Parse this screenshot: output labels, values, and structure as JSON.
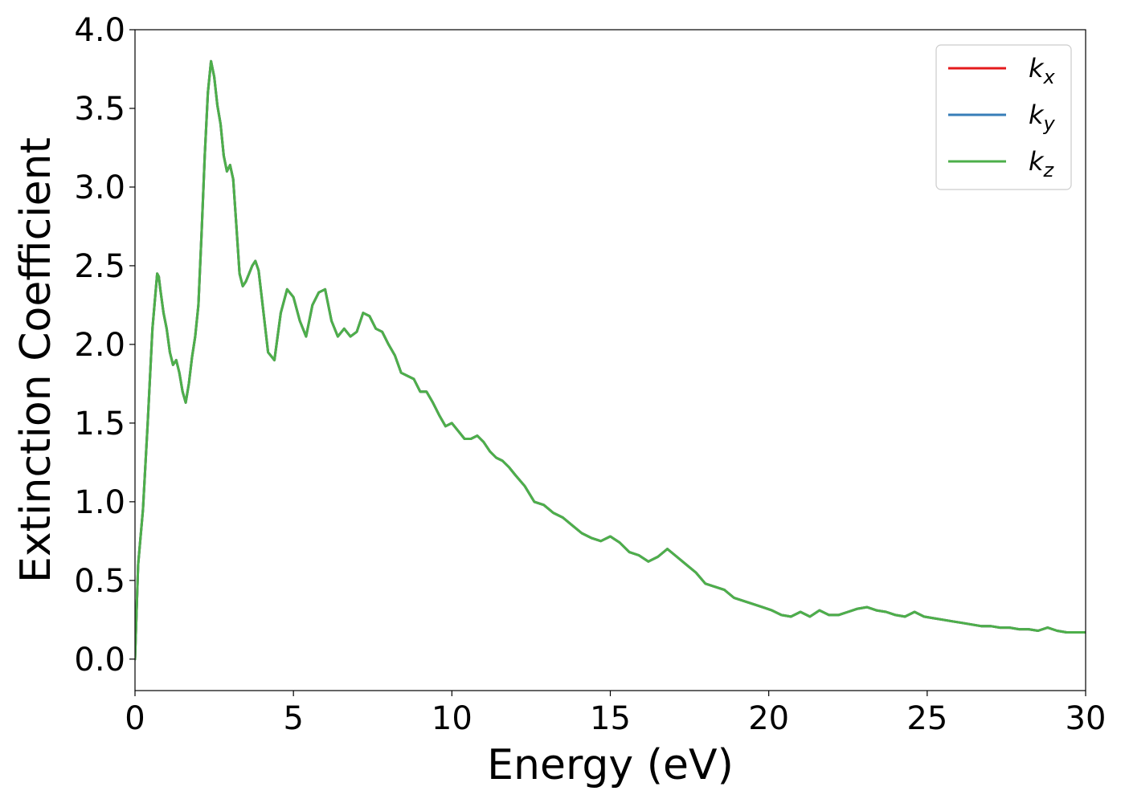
{
  "chart_data": {
    "type": "line",
    "title": "",
    "xlabel": "Energy (eV)",
    "ylabel": "Extinction Coefficient",
    "xlim": [
      0,
      30
    ],
    "ylim": [
      -0.2,
      4.0
    ],
    "x_ticks": [
      0,
      5,
      10,
      15,
      20,
      25,
      30
    ],
    "x_tick_labels": [
      "0",
      "5",
      "10",
      "15",
      "20",
      "25",
      "30"
    ],
    "y_ticks": [
      0.0,
      0.5,
      1.0,
      1.5,
      2.0,
      2.5,
      3.0,
      3.5,
      4.0
    ],
    "y_tick_labels": [
      "0.0",
      "0.5",
      "1.0",
      "1.5",
      "2.0",
      "2.5",
      "3.0",
      "3.5",
      "4.0"
    ],
    "grid": false,
    "legend_position": "top-right",
    "series": [
      {
        "name": "k_x",
        "label_main": "k",
        "label_sub": "x",
        "color": "#e41a1c",
        "x": [
          0,
          0.1,
          0.25,
          0.4,
          0.55,
          0.7,
          0.75,
          0.8,
          0.9,
          1.0,
          1.1,
          1.2,
          1.3,
          1.4,
          1.5,
          1.6,
          1.7,
          1.8,
          1.9,
          2.0,
          2.1,
          2.2,
          2.3,
          2.4,
          2.5,
          2.6,
          2.7,
          2.8,
          2.9,
          3.0,
          3.1,
          3.2,
          3.3,
          3.4,
          3.5,
          3.6,
          3.7,
          3.8,
          3.9,
          4.0,
          4.2,
          4.4,
          4.6,
          4.8,
          5.0,
          5.2,
          5.4,
          5.6,
          5.8,
          6.0,
          6.2,
          6.4,
          6.6,
          6.8,
          7.0,
          7.2,
          7.4,
          7.6,
          7.8,
          8.0,
          8.2,
          8.4,
          8.6,
          8.8,
          9.0,
          9.2,
          9.4,
          9.6,
          9.8,
          10.0,
          10.2,
          10.4,
          10.6,
          10.8,
          11.0,
          11.2,
          11.4,
          11.6,
          11.8,
          12.0,
          12.3,
          12.6,
          12.9,
          13.2,
          13.5,
          13.8,
          14.1,
          14.4,
          14.7,
          15.0,
          15.3,
          15.6,
          15.9,
          16.2,
          16.5,
          16.8,
          17.1,
          17.4,
          17.7,
          18.0,
          18.3,
          18.6,
          18.9,
          19.2,
          19.5,
          19.8,
          20.1,
          20.4,
          20.7,
          21.0,
          21.3,
          21.6,
          21.9,
          22.2,
          22.5,
          22.8,
          23.1,
          23.4,
          23.7,
          24.0,
          24.3,
          24.6,
          24.9,
          25.2,
          25.5,
          25.8,
          26.1,
          26.4,
          26.7,
          27.0,
          27.3,
          27.6,
          27.9,
          28.2,
          28.5,
          28.8,
          29.1,
          29.4,
          29.7,
          30.0
        ],
        "y": [
          0.0,
          0.6,
          0.95,
          1.5,
          2.1,
          2.45,
          2.43,
          2.35,
          2.2,
          2.1,
          1.95,
          1.87,
          1.9,
          1.82,
          1.7,
          1.63,
          1.75,
          1.92,
          2.05,
          2.25,
          2.7,
          3.2,
          3.6,
          3.8,
          3.7,
          3.52,
          3.4,
          3.2,
          3.1,
          3.14,
          3.05,
          2.75,
          2.45,
          2.37,
          2.4,
          2.45,
          2.5,
          2.53,
          2.47,
          2.3,
          1.95,
          1.9,
          2.2,
          2.35,
          2.3,
          2.15,
          2.05,
          2.25,
          2.33,
          2.35,
          2.15,
          2.05,
          2.1,
          2.05,
          2.08,
          2.2,
          2.18,
          2.1,
          2.08,
          2.0,
          1.93,
          1.82,
          1.8,
          1.78,
          1.7,
          1.7,
          1.63,
          1.55,
          1.48,
          1.5,
          1.45,
          1.4,
          1.4,
          1.42,
          1.38,
          1.32,
          1.28,
          1.26,
          1.22,
          1.17,
          1.1,
          1.0,
          0.98,
          0.93,
          0.9,
          0.85,
          0.8,
          0.77,
          0.75,
          0.78,
          0.74,
          0.68,
          0.66,
          0.62,
          0.65,
          0.7,
          0.65,
          0.6,
          0.55,
          0.48,
          0.46,
          0.44,
          0.39,
          0.37,
          0.35,
          0.33,
          0.31,
          0.28,
          0.27,
          0.3,
          0.27,
          0.31,
          0.28,
          0.28,
          0.3,
          0.32,
          0.33,
          0.31,
          0.3,
          0.28,
          0.27,
          0.3,
          0.27,
          0.26,
          0.25,
          0.24,
          0.23,
          0.22,
          0.21,
          0.21,
          0.2,
          0.2,
          0.19,
          0.19,
          0.18,
          0.2,
          0.18,
          0.17,
          0.17,
          0.17
        ]
      },
      {
        "name": "k_y",
        "label_main": "k",
        "label_sub": "y",
        "color": "#377eb8",
        "x": [
          0,
          0.1,
          0.25,
          0.4,
          0.55,
          0.7,
          0.75,
          0.8,
          0.9,
          1.0,
          1.1,
          1.2,
          1.3,
          1.4,
          1.5,
          1.6,
          1.7,
          1.8,
          1.9,
          2.0,
          2.1,
          2.2,
          2.3,
          2.4,
          2.5,
          2.6,
          2.7,
          2.8,
          2.9,
          3.0,
          3.1,
          3.2,
          3.3,
          3.4,
          3.5,
          3.6,
          3.7,
          3.8,
          3.9,
          4.0,
          4.2,
          4.4,
          4.6,
          4.8,
          5.0,
          5.2,
          5.4,
          5.6,
          5.8,
          6.0,
          6.2,
          6.4,
          6.6,
          6.8,
          7.0,
          7.2,
          7.4,
          7.6,
          7.8,
          8.0,
          8.2,
          8.4,
          8.6,
          8.8,
          9.0,
          9.2,
          9.4,
          9.6,
          9.8,
          10.0,
          10.2,
          10.4,
          10.6,
          10.8,
          11.0,
          11.2,
          11.4,
          11.6,
          11.8,
          12.0,
          12.3,
          12.6,
          12.9,
          13.2,
          13.5,
          13.8,
          14.1,
          14.4,
          14.7,
          15.0,
          15.3,
          15.6,
          15.9,
          16.2,
          16.5,
          16.8,
          17.1,
          17.4,
          17.7,
          18.0,
          18.3,
          18.6,
          18.9,
          19.2,
          19.5,
          19.8,
          20.1,
          20.4,
          20.7,
          21.0,
          21.3,
          21.6,
          21.9,
          22.2,
          22.5,
          22.8,
          23.1,
          23.4,
          23.7,
          24.0,
          24.3,
          24.6,
          24.9,
          25.2,
          25.5,
          25.8,
          26.1,
          26.4,
          26.7,
          27.0,
          27.3,
          27.6,
          27.9,
          28.2,
          28.5,
          28.8,
          29.1,
          29.4,
          29.7,
          30.0
        ],
        "y": [
          0.0,
          0.6,
          0.95,
          1.5,
          2.1,
          2.45,
          2.43,
          2.35,
          2.2,
          2.1,
          1.95,
          1.87,
          1.9,
          1.82,
          1.7,
          1.63,
          1.75,
          1.92,
          2.05,
          2.25,
          2.7,
          3.2,
          3.6,
          3.8,
          3.7,
          3.52,
          3.4,
          3.2,
          3.1,
          3.14,
          3.05,
          2.75,
          2.45,
          2.37,
          2.4,
          2.45,
          2.5,
          2.53,
          2.47,
          2.3,
          1.95,
          1.9,
          2.2,
          2.35,
          2.3,
          2.15,
          2.05,
          2.25,
          2.33,
          2.35,
          2.15,
          2.05,
          2.1,
          2.05,
          2.08,
          2.2,
          2.18,
          2.1,
          2.08,
          2.0,
          1.93,
          1.82,
          1.8,
          1.78,
          1.7,
          1.7,
          1.63,
          1.55,
          1.48,
          1.5,
          1.45,
          1.4,
          1.4,
          1.42,
          1.38,
          1.32,
          1.28,
          1.26,
          1.22,
          1.17,
          1.1,
          1.0,
          0.98,
          0.93,
          0.9,
          0.85,
          0.8,
          0.77,
          0.75,
          0.78,
          0.74,
          0.68,
          0.66,
          0.62,
          0.65,
          0.7,
          0.65,
          0.6,
          0.55,
          0.48,
          0.46,
          0.44,
          0.39,
          0.37,
          0.35,
          0.33,
          0.31,
          0.28,
          0.27,
          0.3,
          0.27,
          0.31,
          0.28,
          0.28,
          0.3,
          0.32,
          0.33,
          0.31,
          0.3,
          0.28,
          0.27,
          0.3,
          0.27,
          0.26,
          0.25,
          0.24,
          0.23,
          0.22,
          0.21,
          0.21,
          0.2,
          0.2,
          0.19,
          0.19,
          0.18,
          0.2,
          0.18,
          0.17,
          0.17,
          0.17
        ]
      },
      {
        "name": "k_z",
        "label_main": "k",
        "label_sub": "z",
        "color": "#4daf4a",
        "x": [
          0,
          0.1,
          0.25,
          0.4,
          0.55,
          0.7,
          0.75,
          0.8,
          0.9,
          1.0,
          1.1,
          1.2,
          1.3,
          1.4,
          1.5,
          1.6,
          1.7,
          1.8,
          1.9,
          2.0,
          2.1,
          2.2,
          2.3,
          2.4,
          2.5,
          2.6,
          2.7,
          2.8,
          2.9,
          3.0,
          3.1,
          3.2,
          3.3,
          3.4,
          3.5,
          3.6,
          3.7,
          3.8,
          3.9,
          4.0,
          4.2,
          4.4,
          4.6,
          4.8,
          5.0,
          5.2,
          5.4,
          5.6,
          5.8,
          6.0,
          6.2,
          6.4,
          6.6,
          6.8,
          7.0,
          7.2,
          7.4,
          7.6,
          7.8,
          8.0,
          8.2,
          8.4,
          8.6,
          8.8,
          9.0,
          9.2,
          9.4,
          9.6,
          9.8,
          10.0,
          10.2,
          10.4,
          10.6,
          10.8,
          11.0,
          11.2,
          11.4,
          11.6,
          11.8,
          12.0,
          12.3,
          12.6,
          12.9,
          13.2,
          13.5,
          13.8,
          14.1,
          14.4,
          14.7,
          15.0,
          15.3,
          15.6,
          15.9,
          16.2,
          16.5,
          16.8,
          17.1,
          17.4,
          17.7,
          18.0,
          18.3,
          18.6,
          18.9,
          19.2,
          19.5,
          19.8,
          20.1,
          20.4,
          20.7,
          21.0,
          21.3,
          21.6,
          21.9,
          22.2,
          22.5,
          22.8,
          23.1,
          23.4,
          23.7,
          24.0,
          24.3,
          24.6,
          24.9,
          25.2,
          25.5,
          25.8,
          26.1,
          26.4,
          26.7,
          27.0,
          27.3,
          27.6,
          27.9,
          28.2,
          28.5,
          28.8,
          29.1,
          29.4,
          29.7,
          30.0
        ],
        "y": [
          0.0,
          0.6,
          0.95,
          1.5,
          2.1,
          2.45,
          2.43,
          2.35,
          2.2,
          2.1,
          1.95,
          1.87,
          1.9,
          1.82,
          1.7,
          1.63,
          1.75,
          1.92,
          2.05,
          2.25,
          2.7,
          3.2,
          3.6,
          3.8,
          3.7,
          3.52,
          3.4,
          3.2,
          3.1,
          3.14,
          3.05,
          2.75,
          2.45,
          2.37,
          2.4,
          2.45,
          2.5,
          2.53,
          2.47,
          2.3,
          1.95,
          1.9,
          2.2,
          2.35,
          2.3,
          2.15,
          2.05,
          2.25,
          2.33,
          2.35,
          2.15,
          2.05,
          2.1,
          2.05,
          2.08,
          2.2,
          2.18,
          2.1,
          2.08,
          2.0,
          1.93,
          1.82,
          1.8,
          1.78,
          1.7,
          1.7,
          1.63,
          1.55,
          1.48,
          1.5,
          1.45,
          1.4,
          1.4,
          1.42,
          1.38,
          1.32,
          1.28,
          1.26,
          1.22,
          1.17,
          1.1,
          1.0,
          0.98,
          0.93,
          0.9,
          0.85,
          0.8,
          0.77,
          0.75,
          0.78,
          0.74,
          0.68,
          0.66,
          0.62,
          0.65,
          0.7,
          0.65,
          0.6,
          0.55,
          0.48,
          0.46,
          0.44,
          0.39,
          0.37,
          0.35,
          0.33,
          0.31,
          0.28,
          0.27,
          0.3,
          0.27,
          0.31,
          0.28,
          0.28,
          0.3,
          0.32,
          0.33,
          0.31,
          0.3,
          0.28,
          0.27,
          0.3,
          0.27,
          0.26,
          0.25,
          0.24,
          0.23,
          0.22,
          0.21,
          0.21,
          0.2,
          0.2,
          0.19,
          0.19,
          0.18,
          0.2,
          0.18,
          0.17,
          0.17,
          0.17
        ]
      }
    ]
  }
}
